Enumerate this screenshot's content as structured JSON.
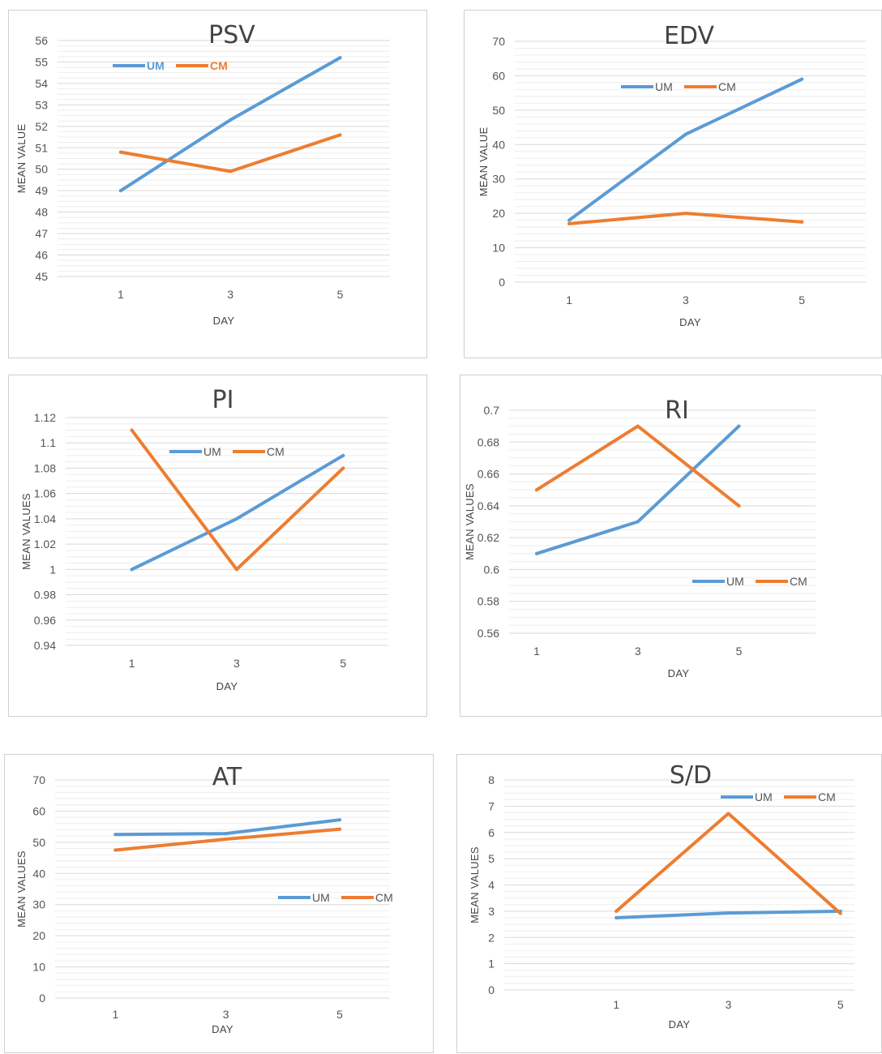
{
  "colors": {
    "UM": "#5b9bd5",
    "CM": "#ed7d31",
    "grid": "#d9d9d9",
    "minor": "#eeeeee"
  },
  "chart_data": [
    {
      "type": "line",
      "title": "PSV",
      "xlabel": "DAY",
      "ylabel": "MEAN VALUE",
      "categories": [
        "1",
        "3",
        "5"
      ],
      "ylim": [
        45,
        56
      ],
      "yticks": [
        "45",
        "46",
        "47",
        "48",
        "49",
        "50",
        "51",
        "52",
        "53",
        "54",
        "55",
        "56"
      ],
      "legend_position": "top-left",
      "grid": true,
      "series": [
        {
          "name": "UM",
          "values": [
            49.0,
            52.3,
            55.2
          ]
        },
        {
          "name": "CM",
          "values": [
            50.8,
            49.9,
            51.6
          ]
        }
      ]
    },
    {
      "type": "line",
      "title": "EDV",
      "xlabel": "DAY",
      "ylabel": "MEAN VALUE",
      "categories": [
        "1",
        "3",
        "5"
      ],
      "ylim": [
        0,
        70
      ],
      "yticks": [
        "0",
        "10",
        "20",
        "30",
        "40",
        "50",
        "60",
        "70"
      ],
      "legend_position": "top-center",
      "grid": true,
      "series": [
        {
          "name": "UM",
          "values": [
            18,
            43,
            59
          ]
        },
        {
          "name": "CM",
          "values": [
            17,
            20,
            17.5
          ]
        }
      ]
    },
    {
      "type": "line",
      "title": "PI",
      "xlabel": "DAY",
      "ylabel": "MEAN VALUES",
      "categories": [
        "1",
        "3",
        "5"
      ],
      "ylim": [
        0.94,
        1.12
      ],
      "yticks": [
        "0.94",
        "0.96",
        "0.98",
        "1",
        "1.02",
        "1.04",
        "1.06",
        "1.08",
        "1.1",
        "1.12"
      ],
      "legend_position": "top-center",
      "grid": true,
      "series": [
        {
          "name": "UM",
          "values": [
            1.0,
            1.04,
            1.09
          ]
        },
        {
          "name": "CM",
          "values": [
            1.11,
            1.0,
            1.08
          ]
        }
      ]
    },
    {
      "type": "line",
      "title": "RI",
      "xlabel": "DAY",
      "ylabel": "MEAN VALUES",
      "categories": [
        "1",
        "3",
        "5"
      ],
      "ylim": [
        0.56,
        0.7
      ],
      "yticks": [
        "0.56",
        "0.58",
        "0.6",
        "0.62",
        "0.64",
        "0.66",
        "0.68",
        "0.7"
      ],
      "legend_position": "bottom-right",
      "grid": true,
      "series": [
        {
          "name": "UM",
          "values": [
            0.61,
            0.63,
            0.69
          ]
        },
        {
          "name": "CM",
          "values": [
            0.65,
            0.69,
            0.64
          ]
        }
      ]
    },
    {
      "type": "line",
      "title": "AT",
      "xlabel": "DAY",
      "ylabel": "MEAN VALUES",
      "categories": [
        "1",
        "3",
        "5"
      ],
      "ylim": [
        0,
        70
      ],
      "yticks": [
        "0",
        "10",
        "20",
        "30",
        "40",
        "50",
        "60",
        "70"
      ],
      "legend_position": "right",
      "grid": true,
      "series": [
        {
          "name": "UM",
          "values": [
            52.5,
            52.8,
            57.2
          ]
        },
        {
          "name": "CM",
          "values": [
            47.5,
            51.0,
            54.2
          ]
        }
      ]
    },
    {
      "type": "line",
      "title": "S/D",
      "xlabel": "DAY",
      "ylabel": "MEAN VALUES",
      "categories": [
        "1",
        "3",
        "5"
      ],
      "ylim": [
        0,
        8
      ],
      "yticks": [
        "0",
        "1",
        "2",
        "3",
        "4",
        "5",
        "6",
        "7",
        "8"
      ],
      "legend_position": "top-right",
      "grid": true,
      "series": [
        {
          "name": "UM",
          "values": [
            2.75,
            2.93,
            3.0
          ]
        },
        {
          "name": "CM",
          "values": [
            3.0,
            6.72,
            2.92
          ]
        }
      ]
    }
  ]
}
